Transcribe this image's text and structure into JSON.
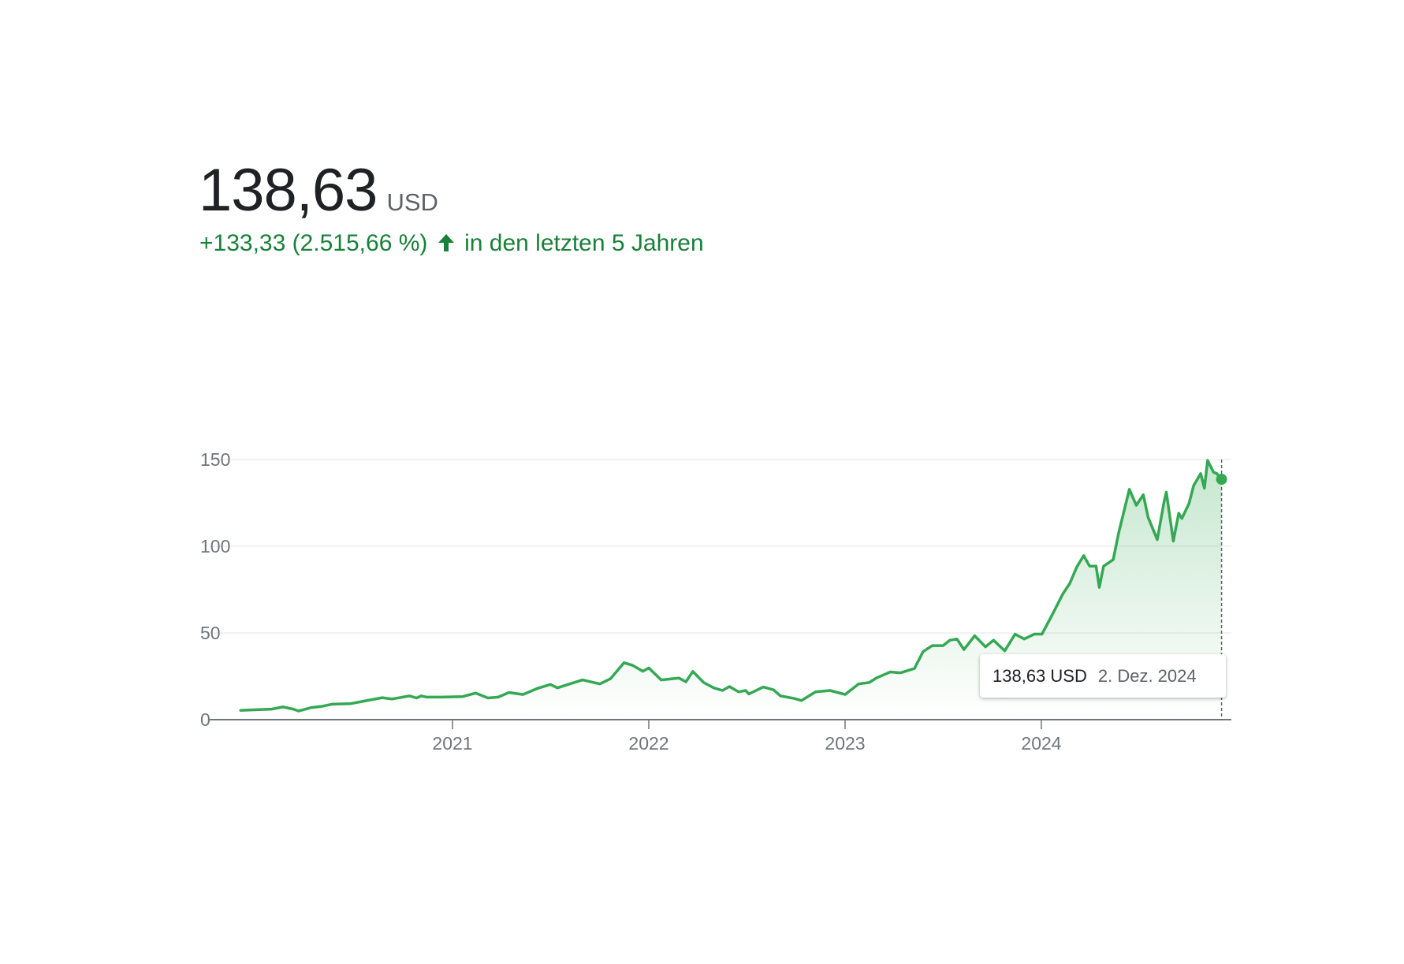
{
  "header": {
    "price": "138,63",
    "currency": "USD",
    "change": "+133,33 (2.515,66 %)",
    "change_icon": "arrow-up-icon",
    "period": "in den letzten 5 Jahren"
  },
  "tooltip": {
    "value": "138,63 USD",
    "date": "2. Dez. 2024"
  },
  "colors": {
    "line": "#34a853",
    "positive_text": "#188038",
    "grid": "#eeeeee",
    "axis": "#70757a"
  },
  "chart_data": {
    "type": "area",
    "title": "",
    "xlabel": "",
    "ylabel": "",
    "ylim": [
      0,
      150
    ],
    "y_ticks": [
      "0",
      "50",
      "100",
      "150"
    ],
    "y_tick_values": [
      0,
      50,
      100,
      150
    ],
    "x_ticks": [
      "2021",
      "2022",
      "2023",
      "2024"
    ],
    "grid": true,
    "legend": "none",
    "series": [
      {
        "x": [
          "2019-12-02",
          "2020-01-30",
          "2020-02-20",
          "2020-03-10",
          "2020-03-20",
          "2020-04-12",
          "2020-05-01",
          "2020-05-21",
          "2020-06-24",
          "2020-07-20",
          "2020-08-23",
          "2020-09-10",
          "2020-10-13",
          "2020-10-26",
          "2020-11-04",
          "2020-11-14",
          "2020-12-12",
          "2021-01-20",
          "2021-02-13",
          "2021-03-08",
          "2021-03-27",
          "2021-04-16",
          "2021-05-12",
          "2021-06-07",
          "2021-07-02",
          "2021-07-15",
          "2021-08-04",
          "2021-08-31",
          "2021-10-02",
          "2021-10-22",
          "2021-11-16",
          "2021-12-02",
          "2021-12-21",
          "2022-01-01",
          "2022-01-24",
          "2022-02-26",
          "2022-03-11",
          "2022-03-24",
          "2022-04-13",
          "2022-05-02",
          "2022-05-18",
          "2022-05-31",
          "2022-06-17",
          "2022-06-30",
          "2022-07-06",
          "2022-08-02",
          "2022-08-21",
          "2022-09-03",
          "2022-09-29",
          "2022-10-12",
          "2022-11-07",
          "2022-12-04",
          "2023-01-01",
          "2023-01-26",
          "2023-02-15",
          "2023-02-28",
          "2023-03-26",
          "2023-04-14",
          "2023-05-10",
          "2023-05-26",
          "2023-06-12",
          "2023-07-02",
          "2023-07-15",
          "2023-07-28",
          "2023-08-10",
          "2023-08-30",
          "2023-09-19",
          "2023-10-04",
          "2023-10-25",
          "2023-11-13",
          "2023-11-30",
          "2023-12-19",
          "2024-01-02",
          "2024-01-21",
          "2024-02-10",
          "2024-02-23",
          "2024-03-07",
          "2024-03-20",
          "2024-03-31",
          "2024-04-12",
          "2024-04-18",
          "2024-04-26",
          "2024-05-14",
          "2024-05-24",
          "2024-06-13",
          "2024-06-26",
          "2024-07-09",
          "2024-07-18",
          "2024-08-04",
          "2024-08-17",
          "2024-08-21",
          "2024-09-03",
          "2024-09-13",
          "2024-09-19",
          "2024-10-02",
          "2024-10-11",
          "2024-10-24",
          "2024-10-31",
          "2024-11-06",
          "2024-11-17",
          "2024-11-23",
          "2024-12-02"
        ],
        "y": [
          5.3,
          6.1,
          7.3,
          6.1,
          5.0,
          6.9,
          7.6,
          8.9,
          9.2,
          10.7,
          12.7,
          11.9,
          13.7,
          12.5,
          13.7,
          13.0,
          13.0,
          13.3,
          15.3,
          12.5,
          13.0,
          15.7,
          14.5,
          17.9,
          20.3,
          18.3,
          20.3,
          22.9,
          20.6,
          23.7,
          32.8,
          31.3,
          27.9,
          29.8,
          22.9,
          24.0,
          21.8,
          27.8,
          21.4,
          18.3,
          16.8,
          19.1,
          16.0,
          16.8,
          14.8,
          18.8,
          17.2,
          13.7,
          12.2,
          11.0,
          16.0,
          16.8,
          14.5,
          20.6,
          21.4,
          24.0,
          27.5,
          27.0,
          29.5,
          39.2,
          42.7,
          42.7,
          45.8,
          46.5,
          40.4,
          48.4,
          42.0,
          45.8,
          39.7,
          49.3,
          46.5,
          49.3,
          49.3,
          60.3,
          72.5,
          78.6,
          88.0,
          94.6,
          88.5,
          88.5,
          76.3,
          88.5,
          92.3,
          107.6,
          132.8,
          123.6,
          129.7,
          116.7,
          103.8,
          125.9,
          131.2,
          103.0,
          119.0,
          116.0,
          124.4,
          135.0,
          141.9,
          133.5,
          149.5,
          142.7,
          141.9,
          138.63
        ]
      }
    ],
    "highlight": {
      "x": "2024-12-02",
      "y": 138.63
    }
  }
}
